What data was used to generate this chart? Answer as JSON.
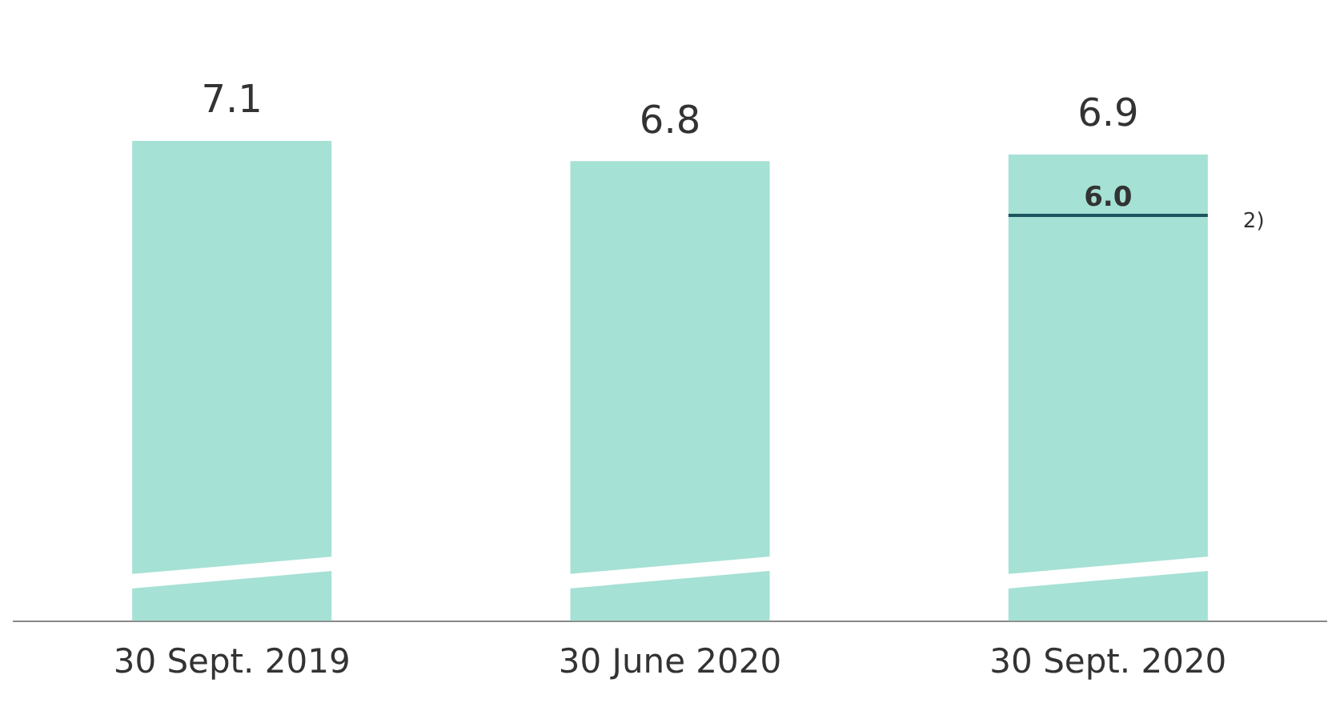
{
  "chart_data": {
    "type": "bar",
    "categories": [
      "30 Sept. 2019",
      "30 June 2020",
      "30 Sept. 2020"
    ],
    "values": [
      7.1,
      6.8,
      6.9
    ],
    "color": "#a5e1d4",
    "data_labels": true,
    "grid": false,
    "legend": false,
    "tick_labels": "x",
    "ref_lines": [
      {
        "axis": "y",
        "value": 6.0,
        "label": "6.0",
        "color": "#1f5560"
      }
    ],
    "annotations": [
      "2)"
    ]
  }
}
